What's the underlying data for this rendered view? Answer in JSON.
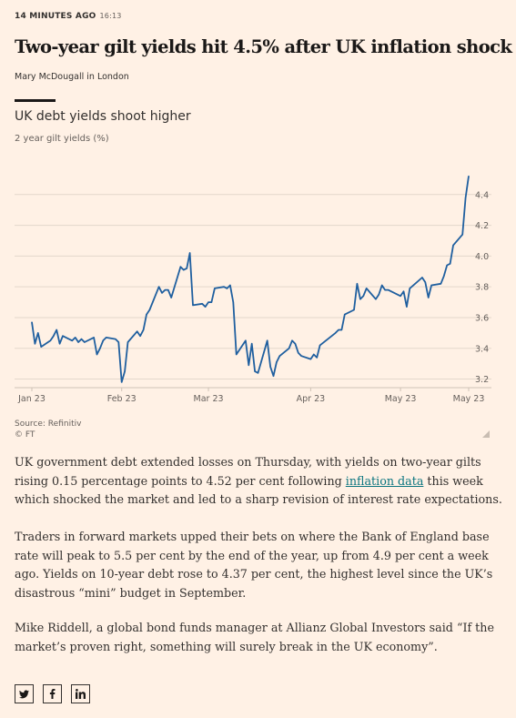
{
  "article": {
    "timestamp_label": "14 MINUTES AGO",
    "time": "16:13",
    "headline": "Two-year gilt  yields hit 4.5% after UK inflation shock",
    "byline": "Mary McDougall in London"
  },
  "chart": {
    "title": "UK debt yields shoot higher",
    "subtitle": "2 year gilt yields (%)",
    "source": "Source: Refinitiv",
    "copyright": "© FT",
    "line_color": "#1f5f9f",
    "grid_color": "#e3d7cb"
  },
  "chart_data": {
    "type": "line",
    "title": "UK debt yields shoot higher",
    "ylabel": "2 year gilt yields (%)",
    "xlabel": "",
    "ylim": [
      3.15,
      4.6
    ],
    "y_ticks": [
      "3.2",
      "3.4",
      "3.6",
      "3.8",
      "4.0",
      "4.2",
      "4.4"
    ],
    "x_ticks": [
      {
        "label": "Jan 23",
        "date": "2023-01-03"
      },
      {
        "label": "Feb 23",
        "date": "2023-02-01"
      },
      {
        "label": "Mar 23",
        "date": "2023-03-01"
      },
      {
        "label": "Apr 23",
        "date": "2023-04-03"
      },
      {
        "label": "May 23",
        "date": "2023-05-02"
      },
      {
        "label": "May 23",
        "date": "2023-05-24"
      }
    ],
    "grid": true,
    "series": [
      {
        "name": "",
        "x": [
          "2023-01-03",
          "2023-01-04",
          "2023-01-05",
          "2023-01-06",
          "2023-01-09",
          "2023-01-10",
          "2023-01-11",
          "2023-01-12",
          "2023-01-13",
          "2023-01-16",
          "2023-01-17",
          "2023-01-18",
          "2023-01-19",
          "2023-01-20",
          "2023-01-23",
          "2023-01-24",
          "2023-01-25",
          "2023-01-26",
          "2023-01-27",
          "2023-01-30",
          "2023-01-31",
          "2023-02-01",
          "2023-02-02",
          "2023-02-03",
          "2023-02-06",
          "2023-02-07",
          "2023-02-08",
          "2023-02-09",
          "2023-02-10",
          "2023-02-13",
          "2023-02-14",
          "2023-02-15",
          "2023-02-16",
          "2023-02-17",
          "2023-02-20",
          "2023-02-21",
          "2023-02-22",
          "2023-02-23",
          "2023-02-24",
          "2023-02-27",
          "2023-02-28",
          "2023-03-01",
          "2023-03-02",
          "2023-03-03",
          "2023-03-06",
          "2023-03-07",
          "2023-03-08",
          "2023-03-09",
          "2023-03-10",
          "2023-03-13",
          "2023-03-14",
          "2023-03-15",
          "2023-03-16",
          "2023-03-17",
          "2023-03-20",
          "2023-03-21",
          "2023-03-22",
          "2023-03-23",
          "2023-03-24",
          "2023-03-27",
          "2023-03-28",
          "2023-03-29",
          "2023-03-30",
          "2023-03-31",
          "2023-04-03",
          "2023-04-04",
          "2023-04-05",
          "2023-04-06",
          "2023-04-11",
          "2023-04-12",
          "2023-04-13",
          "2023-04-14",
          "2023-04-17",
          "2023-04-18",
          "2023-04-19",
          "2023-04-20",
          "2023-04-21",
          "2023-04-24",
          "2023-04-25",
          "2023-04-26",
          "2023-04-27",
          "2023-04-28",
          "2023-05-02",
          "2023-05-03",
          "2023-05-04",
          "2023-05-05",
          "2023-05-09",
          "2023-05-10",
          "2023-05-11",
          "2023-05-12",
          "2023-05-15",
          "2023-05-16",
          "2023-05-17",
          "2023-05-18",
          "2023-05-19",
          "2023-05-22",
          "2023-05-23",
          "2023-05-24"
        ],
        "values": [
          3.57,
          3.43,
          3.5,
          3.41,
          3.45,
          3.48,
          3.52,
          3.43,
          3.48,
          3.45,
          3.47,
          3.44,
          3.46,
          3.44,
          3.47,
          3.36,
          3.4,
          3.45,
          3.47,
          3.46,
          3.44,
          3.18,
          3.25,
          3.44,
          3.51,
          3.48,
          3.52,
          3.62,
          3.65,
          3.8,
          3.76,
          3.78,
          3.78,
          3.73,
          3.93,
          3.91,
          3.92,
          4.02,
          3.68,
          3.69,
          3.67,
          3.7,
          3.7,
          3.79,
          3.8,
          3.79,
          3.81,
          3.7,
          3.36,
          3.45,
          3.29,
          3.43,
          3.25,
          3.24,
          3.45,
          3.28,
          3.22,
          3.31,
          3.35,
          3.4,
          3.45,
          3.43,
          3.37,
          3.35,
          3.33,
          3.36,
          3.34,
          3.42,
          3.5,
          3.52,
          3.52,
          3.62,
          3.65,
          3.82,
          3.72,
          3.74,
          3.79,
          3.72,
          3.75,
          3.81,
          3.78,
          3.78,
          3.74,
          3.77,
          3.67,
          3.79,
          3.86,
          3.83,
          3.73,
          3.81,
          3.82,
          3.87,
          3.94,
          3.95,
          4.07,
          4.14,
          4.38,
          4.52
        ]
      }
    ]
  },
  "body": {
    "p1_before": "UK government debt extended losses on Thursday, with yields on two-year gilts rising 0.15 percentage points to 4.52 per cent following ",
    "p1_link": "inflation data",
    "p1_after": " this week which shocked the market and led to a sharp revision of interest rate expectations.",
    "p2": "Traders in forward markets upped their bets on where the Bank of England base rate will peak to 5.5 per cent by the end of the year, up from 4.9 per cent a week ago. Yields on 10-year debt rose to 4.37 per cent, the highest level since the UK’s disastrous “mini” budget in September.",
    "p3": "Mike Riddell, a global bond funds manager at Allianz Global Investors said “If the market’s proven right, something will surely break in the UK economy”."
  },
  "share": {
    "twitter_icon": "twitter-icon",
    "facebook_icon": "facebook-icon",
    "linkedin_icon": "linkedin-icon"
  }
}
